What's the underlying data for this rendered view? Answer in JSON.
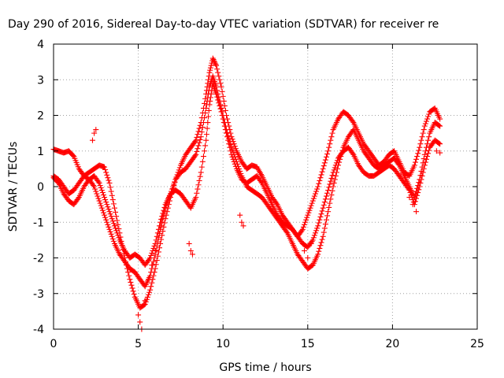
{
  "chart_data": {
    "type": "scatter",
    "title": "Day 290 of 2016, Sidereal Day-to-day VTEC variation (SDTVAR) for receiver re",
    "xlabel": "GPS time / hours",
    "ylabel": "SDTVAR / TECUs",
    "xlim": [
      0,
      25
    ],
    "ylim": [
      -4,
      4
    ],
    "xticks": [
      "0",
      "5",
      "10",
      "15",
      "20",
      "25"
    ],
    "yticks": [
      "-4",
      "-3",
      "-2",
      "-1",
      "0",
      "1",
      "2",
      "3",
      "4"
    ],
    "grid": true,
    "marker": "+",
    "series_color": "#ff0000",
    "series": [
      {
        "x": [
          0.0,
          0.3,
          0.6,
          0.9,
          1.2,
          1.5,
          1.8,
          2.1,
          2.4,
          2.7,
          3.0,
          3.3,
          3.6,
          3.9,
          4.2,
          4.5,
          4.8,
          5.1,
          5.4,
          5.7,
          6.0,
          6.3,
          6.6,
          6.9,
          7.2,
          7.5,
          7.8,
          8.1,
          8.4,
          8.7,
          9.0,
          9.2,
          9.4,
          9.6,
          9.9,
          10.2,
          10.5,
          10.8,
          11.1,
          11.4,
          11.7,
          12.0,
          12.3,
          12.6,
          12.9,
          13.2,
          13.5,
          13.8,
          14.1,
          14.4,
          14.7,
          15.0,
          15.3,
          15.6,
          15.9,
          16.2,
          16.5,
          16.8,
          17.1,
          17.4,
          17.7,
          18.0,
          18.3,
          18.6,
          18.9,
          19.2,
          19.5,
          19.8,
          20.1,
          20.4,
          20.7,
          21.0,
          21.3,
          21.6,
          21.9,
          22.2,
          22.5,
          22.8
        ],
        "y": [
          1.05,
          1.0,
          0.95,
          1.0,
          0.85,
          0.5,
          0.3,
          0.4,
          0.5,
          0.6,
          0.55,
          0.1,
          -0.6,
          -1.3,
          -2.0,
          -2.6,
          -3.1,
          -3.4,
          -3.3,
          -2.9,
          -2.3,
          -1.6,
          -0.9,
          -0.3,
          0.2,
          0.6,
          0.9,
          1.1,
          1.3,
          1.8,
          2.6,
          3.2,
          3.6,
          3.4,
          2.8,
          2.0,
          1.4,
          1.0,
          0.7,
          0.5,
          0.6,
          0.55,
          0.3,
          0.0,
          -0.3,
          -0.5,
          -0.8,
          -1.0,
          -1.2,
          -1.4,
          -1.2,
          -0.8,
          -0.4,
          0.0,
          0.5,
          1.0,
          1.6,
          1.9,
          2.1,
          2.0,
          1.8,
          1.5,
          1.2,
          1.0,
          0.8,
          0.6,
          0.7,
          0.9,
          1.0,
          0.7,
          0.4,
          0.3,
          0.6,
          1.1,
          1.7,
          2.1,
          2.2,
          1.9
        ]
      },
      {
        "x": [
          0.0,
          0.3,
          0.6,
          0.9,
          1.2,
          1.5,
          1.8,
          2.1,
          2.4,
          2.7,
          3.0,
          3.3,
          3.6,
          3.9,
          4.2,
          4.5,
          4.8,
          5.1,
          5.4,
          5.7,
          6.0,
          6.3,
          6.6,
          6.9,
          7.2,
          7.5,
          7.8,
          8.1,
          8.4,
          8.7,
          9.0,
          9.2,
          9.4,
          9.6,
          9.9,
          10.2,
          10.5,
          10.8,
          11.1,
          11.4,
          11.7,
          12.0,
          12.3,
          12.6,
          12.9,
          13.2,
          13.5,
          13.8,
          14.1,
          14.4,
          14.7,
          15.0,
          15.3,
          15.6,
          15.9,
          16.2,
          16.5,
          16.8,
          17.1,
          17.4,
          17.7,
          18.0,
          18.3,
          18.6,
          18.9,
          19.2,
          19.5,
          19.8,
          20.1,
          20.4,
          20.7,
          21.0,
          21.3,
          21.6,
          21.9,
          22.2,
          22.5,
          22.8
        ],
        "y": [
          0.3,
          0.2,
          0.0,
          -0.2,
          -0.1,
          0.1,
          0.3,
          0.2,
          0.0,
          -0.4,
          -0.8,
          -1.2,
          -1.6,
          -1.9,
          -2.1,
          -2.3,
          -2.4,
          -2.6,
          -2.8,
          -2.5,
          -1.9,
          -1.2,
          -0.6,
          -0.2,
          0.2,
          0.4,
          0.5,
          0.7,
          0.9,
          1.4,
          2.2,
          2.8,
          3.1,
          2.8,
          2.2,
          1.6,
          1.1,
          0.7,
          0.3,
          0.0,
          -0.1,
          -0.2,
          -0.3,
          -0.5,
          -0.7,
          -0.9,
          -1.1,
          -1.3,
          -1.6,
          -1.9,
          -2.1,
          -2.3,
          -2.2,
          -1.9,
          -1.4,
          -0.7,
          0.0,
          0.6,
          1.1,
          1.4,
          1.6,
          1.3,
          1.0,
          0.8,
          0.6,
          0.5,
          0.6,
          0.7,
          0.8,
          0.6,
          0.3,
          0.0,
          -0.3,
          0.2,
          0.9,
          1.5,
          1.8,
          1.7
        ]
      },
      {
        "x": [
          0.0,
          0.3,
          0.6,
          0.9,
          1.2,
          1.5,
          1.8,
          2.1,
          2.4,
          2.7,
          3.0,
          3.3,
          3.6,
          3.9,
          4.2,
          4.5,
          4.8,
          5.1,
          5.4,
          5.7,
          6.0,
          6.3,
          6.6,
          6.9,
          7.2,
          7.5,
          7.8,
          8.1,
          8.4,
          8.7,
          9.0,
          9.2,
          9.4,
          9.6,
          9.9,
          10.2,
          10.5,
          10.8,
          11.1,
          11.4,
          11.7,
          12.0,
          12.3,
          12.6,
          12.9,
          13.2,
          13.5,
          13.8,
          14.1,
          14.4,
          14.7,
          15.0,
          15.3,
          15.6,
          15.9,
          16.2,
          16.5,
          16.8,
          17.1,
          17.4,
          17.7,
          18.0,
          18.3,
          18.6,
          18.9,
          19.2,
          19.5,
          19.8,
          20.1,
          20.4,
          20.7,
          21.0,
          21.3,
          21.6,
          21.9,
          22.2,
          22.5,
          22.8
        ],
        "y": [
          0.25,
          0.1,
          -0.2,
          -0.4,
          -0.5,
          -0.3,
          0.0,
          0.2,
          0.3,
          0.1,
          -0.3,
          -0.7,
          -1.1,
          -1.5,
          -1.8,
          -2.0,
          -1.9,
          -2.0,
          -2.2,
          -2.0,
          -1.6,
          -1.0,
          -0.5,
          -0.2,
          -0.1,
          -0.2,
          -0.4,
          -0.6,
          -0.3,
          0.4,
          1.3,
          2.3,
          2.9,
          2.6,
          2.1,
          1.5,
          0.9,
          0.5,
          0.2,
          0.1,
          0.2,
          0.3,
          0.1,
          -0.2,
          -0.5,
          -0.8,
          -1.0,
          -1.1,
          -1.2,
          -1.4,
          -1.6,
          -1.7,
          -1.5,
          -1.1,
          -0.6,
          -0.1,
          0.4,
          0.8,
          1.0,
          1.1,
          0.9,
          0.6,
          0.4,
          0.3,
          0.3,
          0.4,
          0.5,
          0.6,
          0.5,
          0.3,
          0.1,
          -0.1,
          -0.5,
          0.0,
          0.6,
          1.1,
          1.3,
          1.2
        ]
      },
      {
        "x": [
          2.3,
          2.4,
          2.5,
          5.0,
          5.1,
          5.2,
          5.4,
          5.6,
          5.8,
          6.0,
          8.0,
          8.1,
          8.2,
          11.0,
          11.1,
          11.2,
          14.8,
          15.0,
          15.2,
          20.5,
          20.7,
          21.0,
          21.2,
          21.4,
          22.6,
          22.8
        ],
        "y": [
          1.3,
          1.5,
          1.6,
          -3.6,
          -3.8,
          -4.0,
          -3.2,
          -2.6,
          -2.2,
          -1.8,
          -1.6,
          -1.8,
          -1.9,
          -0.8,
          -1.0,
          -1.1,
          -1.8,
          -2.0,
          -1.6,
          0.3,
          0.1,
          -0.3,
          -0.5,
          -0.7,
          1.0,
          0.95
        ]
      }
    ]
  }
}
